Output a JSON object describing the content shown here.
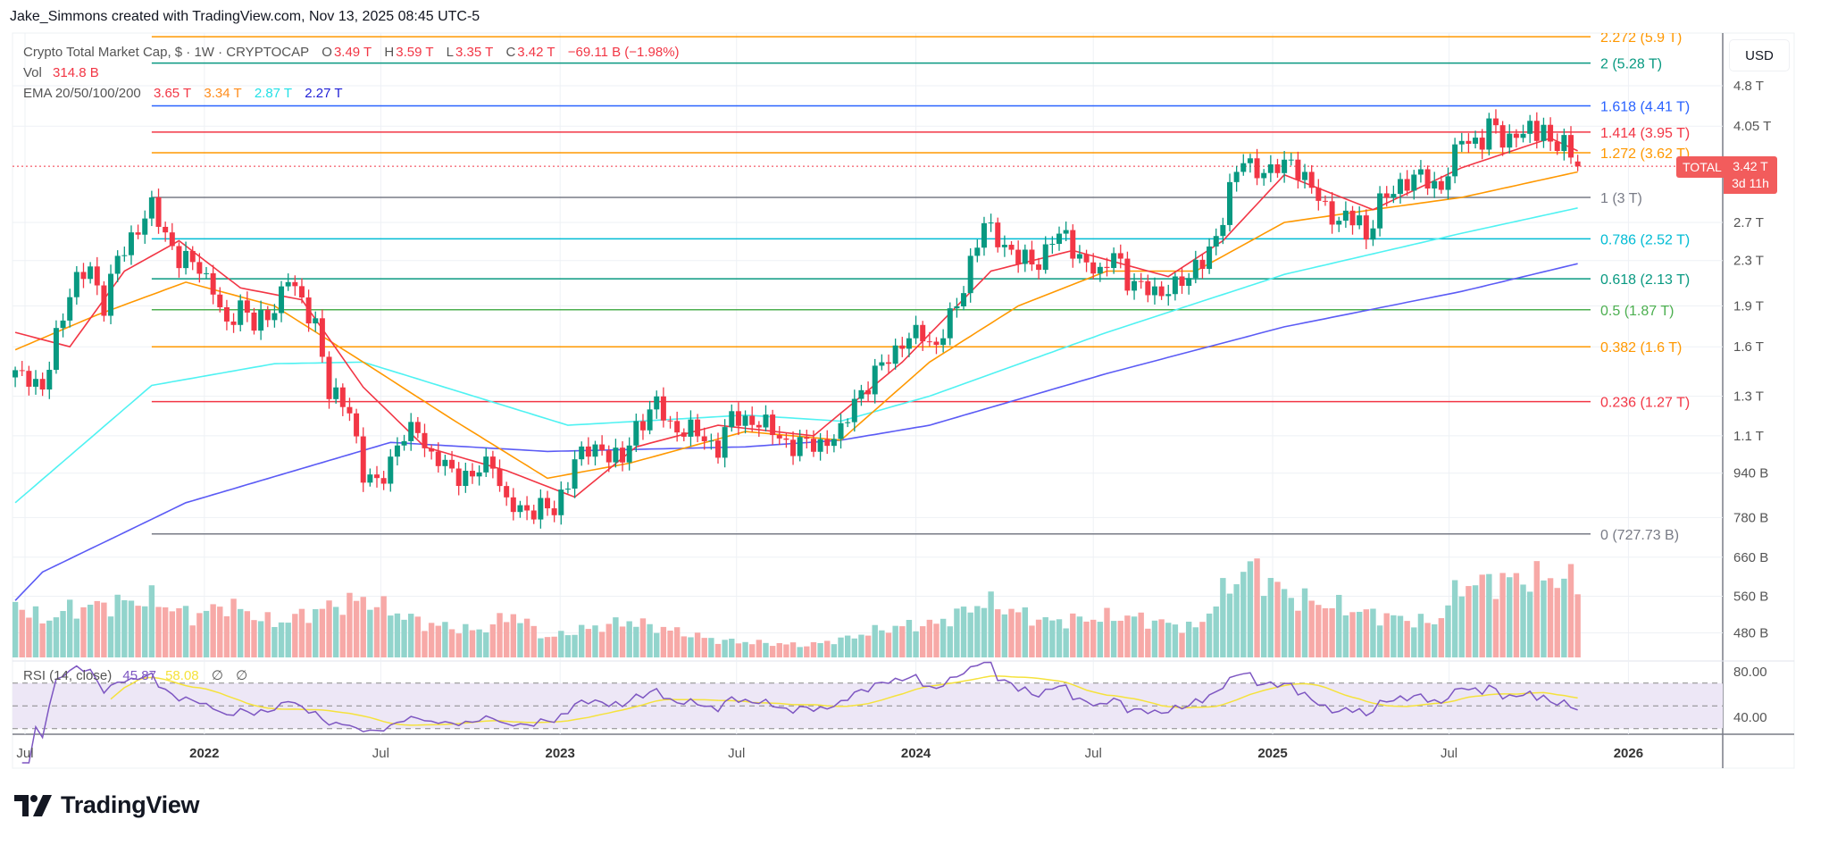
{
  "credit": "Jake_Simmons created with TradingView.com, Nov 13, 2025 08:45 UTC-5",
  "legend": {
    "symbol": "Crypto Total Market Cap, $ · 1W · CRYPTOCAP",
    "o_label": "O",
    "o": "3.49 T",
    "h_label": "H",
    "h": "3.59 T",
    "l_label": "L",
    "l": "3.35 T",
    "c_label": "C",
    "c": "3.42 T",
    "change": "−69.11 B (−1.98%)",
    "vol_label": "Vol",
    "vol": "314.8 B",
    "ema_label": "EMA 20/50/100/200",
    "ema20": "3.65 T",
    "ema50": "3.34 T",
    "ema100": "2.87 T",
    "ema200": "2.27 T",
    "rsi_label": "RSI (14, close)",
    "rsi": "45.87",
    "rsi_ma": "58.08",
    "na1": "∅",
    "na2": "∅"
  },
  "currency": "USD",
  "price_tag": {
    "symbol": "TOTAL",
    "price": "3.42 T",
    "countdown": "3d 11h"
  },
  "brand": "TradingView",
  "colors": {
    "up": "#089981",
    "down": "#f23645",
    "vol_up": "#92d4cc",
    "vol_down": "#f7a9a7",
    "ema20": "#f23645",
    "ema50": "#ff9800",
    "ema100": "#4ff2f2",
    "ema200": "#5b5bf5",
    "rsi": "#7e57c2",
    "rsi_ma": "#f5e23c",
    "rsi_band": "#ede7f6",
    "grid": "#eef1f5"
  },
  "chart_data": {
    "type": "candlestick",
    "timeframe": "1W",
    "y_scale": "log",
    "ylim_T": [
      0.45,
      6.0
    ],
    "price_axis": [
      {
        "v": 4.8,
        "label": "4.8 T"
      },
      {
        "v": 4.05,
        "label": "4.05 T"
      },
      {
        "v": 2.7,
        "label": "2.7 T"
      },
      {
        "v": 2.3,
        "label": "2.3 T"
      },
      {
        "v": 1.9,
        "label": "1.9 T"
      },
      {
        "v": 1.6,
        "label": "1.6 T"
      },
      {
        "v": 1.3,
        "label": "1.3 T"
      },
      {
        "v": 1.1,
        "label": "1.1 T"
      },
      {
        "v": 0.94,
        "label": "940 B"
      },
      {
        "v": 0.78,
        "label": "780 B"
      },
      {
        "v": 0.66,
        "label": "660 B"
      },
      {
        "v": 0.56,
        "label": "560 B"
      },
      {
        "v": 0.48,
        "label": "480 B"
      }
    ],
    "time_axis": [
      {
        "date": "2021-07-01",
        "label": "Jul",
        "bold": false
      },
      {
        "date": "2022-01-01",
        "label": "2022",
        "bold": true
      },
      {
        "date": "2022-07-01",
        "label": "Jul",
        "bold": false
      },
      {
        "date": "2023-01-01",
        "label": "2023",
        "bold": true
      },
      {
        "date": "2023-07-01",
        "label": "Jul",
        "bold": false
      },
      {
        "date": "2024-01-01",
        "label": "2024",
        "bold": true
      },
      {
        "date": "2024-07-01",
        "label": "Jul",
        "bold": false
      },
      {
        "date": "2025-01-01",
        "label": "2025",
        "bold": true
      },
      {
        "date": "2025-07-01",
        "label": "Jul",
        "bold": false
      },
      {
        "date": "2026-01-01",
        "label": "2026",
        "bold": true
      }
    ],
    "rsi_axis": [
      {
        "v": 80,
        "label": "80.00"
      },
      {
        "v": 40,
        "label": "40.00"
      }
    ],
    "rsi_bands": [
      70,
      50,
      30
    ],
    "last_bar": {
      "date": "2025-11-10",
      "open": 3.49,
      "high": 3.59,
      "low": 3.35,
      "close": 3.42
    },
    "fib_levels": [
      {
        "level": "2.272",
        "value": 5.9,
        "label": "2.272 (5.9 T)",
        "color": "#ff9800"
      },
      {
        "level": "2",
        "value": 5.28,
        "label": "2 (5.28 T)",
        "color": "#089981"
      },
      {
        "level": "1.618",
        "value": 4.41,
        "label": "1.618 (4.41 T)",
        "color": "#2962ff"
      },
      {
        "level": "1.414",
        "value": 3.95,
        "label": "1.414 (3.95 T)",
        "color": "#f23645"
      },
      {
        "level": "1.272",
        "value": 3.62,
        "label": "1.272 (3.62 T)",
        "color": "#ff9800"
      },
      {
        "level": "1",
        "value": 3.0,
        "label": "1 (3 T)",
        "color": "#787b86"
      },
      {
        "level": "0.786",
        "value": 2.52,
        "label": "0.786 (2.52 T)",
        "color": "#00bcd4"
      },
      {
        "level": "0.618",
        "value": 2.13,
        "label": "0.618 (2.13 T)",
        "color": "#089981"
      },
      {
        "level": "0.5",
        "value": 1.87,
        "label": "0.5 (1.87 T)",
        "color": "#4caf50"
      },
      {
        "level": "0.382",
        "value": 1.6,
        "label": "0.382 (1.6 T)",
        "color": "#ff9800"
      },
      {
        "level": "0.236",
        "value": 1.27,
        "label": "0.236 (1.27 T)",
        "color": "#f23645"
      },
      {
        "level": "0",
        "value": 0.72773,
        "label": "0 (727.73 B)",
        "color": "#787b86"
      }
    ],
    "fib_start": "2021-11-08",
    "closes_T": [
      [
        "2021-06-21",
        1.45
      ],
      [
        "2021-07-05",
        1.42
      ],
      [
        "2021-07-19",
        1.3
      ],
      [
        "2021-08-02",
        1.7
      ],
      [
        "2021-08-16",
        2.0
      ],
      [
        "2021-09-06",
        2.25
      ],
      [
        "2021-09-20",
        1.9
      ],
      [
        "2021-10-04",
        2.3
      ],
      [
        "2021-10-18",
        2.55
      ],
      [
        "2021-11-08",
        2.85
      ],
      [
        "2021-11-22",
        2.6
      ],
      [
        "2021-12-06",
        2.3
      ],
      [
        "2021-12-27",
        2.25
      ],
      [
        "2022-01-10",
        2.05
      ],
      [
        "2022-01-24",
        1.7
      ],
      [
        "2022-02-07",
        1.95
      ],
      [
        "2022-02-21",
        1.75
      ],
      [
        "2022-03-07",
        1.8
      ],
      [
        "2022-03-28",
        2.15
      ],
      [
        "2022-04-11",
        1.9
      ],
      [
        "2022-04-25",
        1.8
      ],
      [
        "2022-05-09",
        1.3
      ],
      [
        "2022-05-30",
        1.25
      ],
      [
        "2022-06-13",
        0.92
      ],
      [
        "2022-06-27",
        0.9
      ],
      [
        "2022-07-18",
        1.05
      ],
      [
        "2022-08-08",
        1.15
      ],
      [
        "2022-08-22",
        1.0
      ],
      [
        "2022-09-12",
        0.95
      ],
      [
        "2022-10-03",
        0.92
      ],
      [
        "2022-10-24",
        1.0
      ],
      [
        "2022-11-07",
        0.82
      ],
      [
        "2022-11-21",
        0.8
      ],
      [
        "2022-12-12",
        0.82
      ],
      [
        "2022-12-26",
        0.79
      ],
      [
        "2023-01-16",
        1.0
      ],
      [
        "2023-02-13",
        1.05
      ],
      [
        "2023-03-06",
        0.98
      ],
      [
        "2023-03-20",
        1.15
      ],
      [
        "2023-04-10",
        1.25
      ],
      [
        "2023-04-24",
        1.15
      ],
      [
        "2023-05-15",
        1.12
      ],
      [
        "2023-06-12",
        1.05
      ],
      [
        "2023-06-26",
        1.18
      ],
      [
        "2023-07-17",
        1.18
      ],
      [
        "2023-08-14",
        1.1
      ],
      [
        "2023-08-28",
        1.05
      ],
      [
        "2023-09-25",
        1.07
      ],
      [
        "2023-10-16",
        1.1
      ],
      [
        "2023-10-30",
        1.3
      ],
      [
        "2023-11-13",
        1.35
      ],
      [
        "2023-12-04",
        1.55
      ],
      [
        "2023-12-18",
        1.62
      ],
      [
        "2024-01-08",
        1.7
      ],
      [
        "2024-01-22",
        1.6
      ],
      [
        "2024-02-12",
        1.9
      ],
      [
        "2024-02-26",
        2.3
      ],
      [
        "2024-03-11",
        2.65
      ],
      [
        "2024-03-25",
        2.55
      ],
      [
        "2024-04-15",
        2.3
      ],
      [
        "2024-05-06",
        2.3
      ],
      [
        "2024-05-20",
        2.5
      ],
      [
        "2024-06-03",
        2.55
      ],
      [
        "2024-06-24",
        2.25
      ],
      [
        "2024-07-08",
        2.15
      ],
      [
        "2024-07-22",
        2.45
      ],
      [
        "2024-08-05",
        2.05
      ],
      [
        "2024-08-26",
        2.1
      ],
      [
        "2024-09-09",
        1.95
      ],
      [
        "2024-09-30",
        2.15
      ],
      [
        "2024-10-21",
        2.25
      ],
      [
        "2024-11-04",
        2.55
      ],
      [
        "2024-11-18",
        3.1
      ],
      [
        "2024-12-02",
        3.5
      ],
      [
        "2024-12-16",
        3.4
      ],
      [
        "2024-12-30",
        3.3
      ],
      [
        "2025-01-20",
        3.55
      ],
      [
        "2025-02-03",
        3.2
      ],
      [
        "2025-02-24",
        2.9
      ],
      [
        "2025-03-10",
        2.7
      ],
      [
        "2025-03-31",
        2.75
      ],
      [
        "2025-04-07",
        2.55
      ],
      [
        "2025-04-21",
        2.9
      ],
      [
        "2025-05-12",
        3.2
      ],
      [
        "2025-06-02",
        3.25
      ],
      [
        "2025-06-23",
        3.15
      ],
      [
        "2025-07-07",
        3.55
      ],
      [
        "2025-07-14",
        3.85
      ],
      [
        "2025-08-04",
        3.8
      ],
      [
        "2025-08-11",
        4.05
      ],
      [
        "2025-08-25",
        3.85
      ],
      [
        "2025-09-15",
        3.95
      ],
      [
        "2025-09-29",
        3.9
      ],
      [
        "2025-10-06",
        4.15
      ],
      [
        "2025-10-13",
        3.75
      ],
      [
        "2025-10-27",
        3.75
      ],
      [
        "2025-11-03",
        3.49
      ],
      [
        "2025-11-10",
        3.42
      ]
    ],
    "volume_B": [
      [
        "2021-06-21",
        230
      ],
      [
        "2021-07-19",
        150
      ],
      [
        "2021-08-16",
        200
      ],
      [
        "2021-09-20",
        220
      ],
      [
        "2021-11-08",
        240
      ],
      [
        "2021-12-20",
        170
      ],
      [
        "2022-01-24",
        220
      ],
      [
        "2022-03-14",
        140
      ],
      [
        "2022-05-09",
        210
      ],
      [
        "2022-06-13",
        240
      ],
      [
        "2022-08-15",
        140
      ],
      [
        "2022-10-10",
        110
      ],
      [
        "2022-11-14",
        180
      ],
      [
        "2022-12-19",
        80
      ],
      [
        "2023-01-16",
        110
      ],
      [
        "2023-03-13",
        150
      ],
      [
        "2023-06-12",
        70
      ],
      [
        "2023-09-11",
        50
      ],
      [
        "2023-10-23",
        80
      ],
      [
        "2023-11-20",
        110
      ],
      [
        "2023-12-18",
        130
      ],
      [
        "2024-01-22",
        140
      ],
      [
        "2024-03-11",
        230
      ],
      [
        "2024-05-13",
        150
      ],
      [
        "2024-08-05",
        170
      ],
      [
        "2024-10-14",
        120
      ],
      [
        "2024-11-18",
        300
      ],
      [
        "2024-12-09",
        380
      ],
      [
        "2025-01-20",
        250
      ],
      [
        "2025-02-24",
        220
      ],
      [
        "2025-04-14",
        180
      ],
      [
        "2025-06-16",
        140
      ],
      [
        "2025-07-14",
        300
      ],
      [
        "2025-08-18",
        320
      ],
      [
        "2025-10-13",
        330
      ],
      [
        "2025-11-10",
        314.8
      ]
    ],
    "ema_T": {
      "ema20": [
        [
          "2021-06-21",
          1.7
        ],
        [
          "2021-08-16",
          1.6
        ],
        [
          "2021-10-11",
          2.2
        ],
        [
          "2021-12-06",
          2.5
        ],
        [
          "2022-02-07",
          2.05
        ],
        [
          "2022-04-11",
          1.95
        ],
        [
          "2022-06-13",
          1.35
        ],
        [
          "2022-08-15",
          1.05
        ],
        [
          "2022-11-07",
          0.95
        ],
        [
          "2023-01-16",
          0.85
        ],
        [
          "2023-03-20",
          1.05
        ],
        [
          "2023-06-12",
          1.15
        ],
        [
          "2023-09-18",
          1.1
        ],
        [
          "2023-12-18",
          1.5
        ],
        [
          "2024-03-18",
          2.2
        ],
        [
          "2024-06-10",
          2.4
        ],
        [
          "2024-09-16",
          2.15
        ],
        [
          "2024-11-11",
          2.5
        ],
        [
          "2025-01-13",
          3.3
        ],
        [
          "2025-04-14",
          2.85
        ],
        [
          "2025-07-14",
          3.4
        ],
        [
          "2025-10-13",
          3.85
        ],
        [
          "2025-11-10",
          3.65
        ]
      ],
      "ema50": [
        [
          "2021-06-21",
          1.58
        ],
        [
          "2021-09-13",
          1.83
        ],
        [
          "2021-12-13",
          2.1
        ],
        [
          "2022-03-14",
          1.9
        ],
        [
          "2022-06-13",
          1.5
        ],
        [
          "2022-09-12",
          1.18
        ],
        [
          "2022-12-19",
          0.92
        ],
        [
          "2023-03-13",
          0.98
        ],
        [
          "2023-07-10",
          1.12
        ],
        [
          "2023-10-16",
          1.08
        ],
        [
          "2024-01-15",
          1.5
        ],
        [
          "2024-04-15",
          1.9
        ],
        [
          "2024-07-15",
          2.2
        ],
        [
          "2024-10-14",
          2.2
        ],
        [
          "2025-01-13",
          2.7
        ],
        [
          "2025-04-14",
          2.85
        ],
        [
          "2025-07-14",
          3.0
        ],
        [
          "2025-11-10",
          3.34
        ]
      ],
      "ema100": [
        [
          "2021-06-21",
          0.83
        ],
        [
          "2021-11-08",
          1.36
        ],
        [
          "2022-03-14",
          1.49
        ],
        [
          "2022-06-13",
          1.5
        ],
        [
          "2023-01-09",
          1.15
        ],
        [
          "2023-07-10",
          1.2
        ],
        [
          "2023-10-16",
          1.17
        ],
        [
          "2024-01-15",
          1.3
        ],
        [
          "2024-07-15",
          1.7
        ],
        [
          "2025-01-13",
          2.17
        ],
        [
          "2025-07-14",
          2.58
        ],
        [
          "2025-11-10",
          2.87
        ]
      ],
      "ema200": [
        [
          "2021-06-21",
          0.55
        ],
        [
          "2021-07-19",
          0.62
        ],
        [
          "2021-12-13",
          0.83
        ],
        [
          "2022-07-11",
          1.07
        ],
        [
          "2022-12-19",
          1.03
        ],
        [
          "2023-07-10",
          1.05
        ],
        [
          "2023-10-16",
          1.08
        ],
        [
          "2024-01-15",
          1.15
        ],
        [
          "2024-07-15",
          1.43
        ],
        [
          "2025-01-13",
          1.74
        ],
        [
          "2025-07-14",
          2.02
        ],
        [
          "2025-11-10",
          2.27
        ]
      ]
    }
  }
}
